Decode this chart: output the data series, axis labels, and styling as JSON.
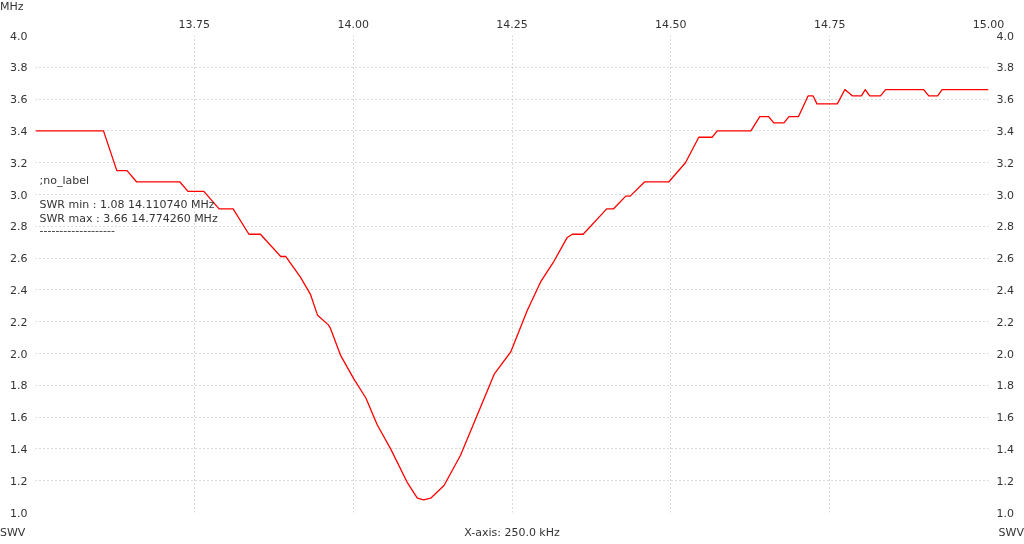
{
  "chart_data": {
    "type": "line",
    "xlabel": "MHz",
    "ylabel": "SWV",
    "y2label": "SWV",
    "annotations": [
      ";no_label",
      "SWR min : 1.08  14.110740 MHz",
      "SWR max : 3.66  14.774260 MHz",
      "-------------------",
      "X-axis: 250.0 kHz"
    ],
    "xlim": [
      13.5,
      15.0
    ],
    "ylim": [
      1.0,
      4.0
    ],
    "y2lim": [
      1.0,
      4.0
    ],
    "xticks": [
      {
        "value": 13.75,
        "label": "13.75"
      },
      {
        "value": 14.0,
        "label": "14.00"
      },
      {
        "value": 14.25,
        "label": "14.25"
      },
      {
        "value": 14.5,
        "label": "14.50"
      },
      {
        "value": 14.75,
        "label": "14.75"
      },
      {
        "value": 15.0,
        "label": "15.00"
      }
    ],
    "yticks": [
      {
        "value": 1.0,
        "label": "1.0"
      },
      {
        "value": 1.2,
        "label": "1.2"
      },
      {
        "value": 1.4,
        "label": "1.4"
      },
      {
        "value": 1.6,
        "label": "1.6"
      },
      {
        "value": 1.8,
        "label": "1.8"
      },
      {
        "value": 2.0,
        "label": "2.0"
      },
      {
        "value": 2.2,
        "label": "2.2"
      },
      {
        "value": 2.4,
        "label": "2.4"
      },
      {
        "value": 2.6,
        "label": "2.6"
      },
      {
        "value": 2.8,
        "label": "2.8"
      },
      {
        "value": 3.0,
        "label": "3.0"
      },
      {
        "value": 3.2,
        "label": "3.2"
      },
      {
        "value": 3.4,
        "label": "3.4"
      },
      {
        "value": 3.6,
        "label": "3.6"
      },
      {
        "value": 3.8,
        "label": "3.8"
      },
      {
        "value": 4.0,
        "label": "4.0"
      }
    ],
    "y2ticks": [
      {
        "value": 1.0,
        "label": "1.0"
      },
      {
        "value": 1.2,
        "label": "1.2"
      },
      {
        "value": 1.4,
        "label": "1.4"
      },
      {
        "value": 1.6,
        "label": "1.6"
      },
      {
        "value": 1.8,
        "label": "1.8"
      },
      {
        "value": 2.0,
        "label": "2.0"
      },
      {
        "value": 2.2,
        "label": "2.2"
      },
      {
        "value": 2.4,
        "label": "2.4"
      },
      {
        "value": 2.6,
        "label": "2.6"
      },
      {
        "value": 2.8,
        "label": "2.8"
      },
      {
        "value": 3.0,
        "label": "3.0"
      },
      {
        "value": 3.2,
        "label": "3.2"
      },
      {
        "value": 3.4,
        "label": "3.4"
      },
      {
        "value": 3.6,
        "label": "3.6"
      },
      {
        "value": 3.8,
        "label": "3.8"
      },
      {
        "value": 4.0,
        "label": "4.0"
      }
    ],
    "grid": true,
    "line_style": "solid",
    "x": [
      13.5,
      13.607,
      13.628,
      13.644,
      13.659,
      13.727,
      13.74,
      13.765,
      13.789,
      13.811,
      13.836,
      13.854,
      13.886,
      13.894,
      13.917,
      13.933,
      13.944,
      13.961,
      13.964,
      13.98,
      14.001,
      14.02,
      14.038,
      14.059,
      14.085,
      14.101,
      14.111,
      14.122,
      14.143,
      14.169,
      14.195,
      14.222,
      14.248,
      14.274,
      14.295,
      14.316,
      14.337,
      14.345,
      14.362,
      14.39,
      14.399,
      14.41,
      14.429,
      14.436,
      14.459,
      14.497,
      14.523,
      14.544,
      14.565,
      14.573,
      14.626,
      14.64,
      14.654,
      14.662,
      14.678,
      14.686,
      14.701,
      14.716,
      14.724,
      14.73,
      14.762,
      14.774,
      14.786,
      14.8,
      14.806,
      14.813,
      14.83,
      14.838,
      14.898,
      14.906,
      14.92,
      14.927,
      15.0
    ],
    "series": [
      {
        "color": "#ff0000",
        "values": [
          3.4,
          3.4,
          3.15,
          3.15,
          3.08,
          3.08,
          3.02,
          3.02,
          2.91,
          2.91,
          2.75,
          2.75,
          2.61,
          2.61,
          2.48,
          2.37,
          2.24,
          2.18,
          2.16,
          1.99,
          1.84,
          1.72,
          1.55,
          1.4,
          1.19,
          1.09,
          1.08,
          1.09,
          1.17,
          1.36,
          1.61,
          1.87,
          2.01,
          2.27,
          2.45,
          2.58,
          2.73,
          2.75,
          2.75,
          2.87,
          2.91,
          2.91,
          2.99,
          2.99,
          3.08,
          3.08,
          3.2,
          3.36,
          3.36,
          3.4,
          3.4,
          3.49,
          3.49,
          3.45,
          3.45,
          3.49,
          3.49,
          3.62,
          3.62,
          3.57,
          3.57,
          3.66,
          3.62,
          3.62,
          3.66,
          3.62,
          3.62,
          3.66,
          3.66,
          3.62,
          3.62,
          3.66,
          3.66
        ]
      }
    ]
  }
}
